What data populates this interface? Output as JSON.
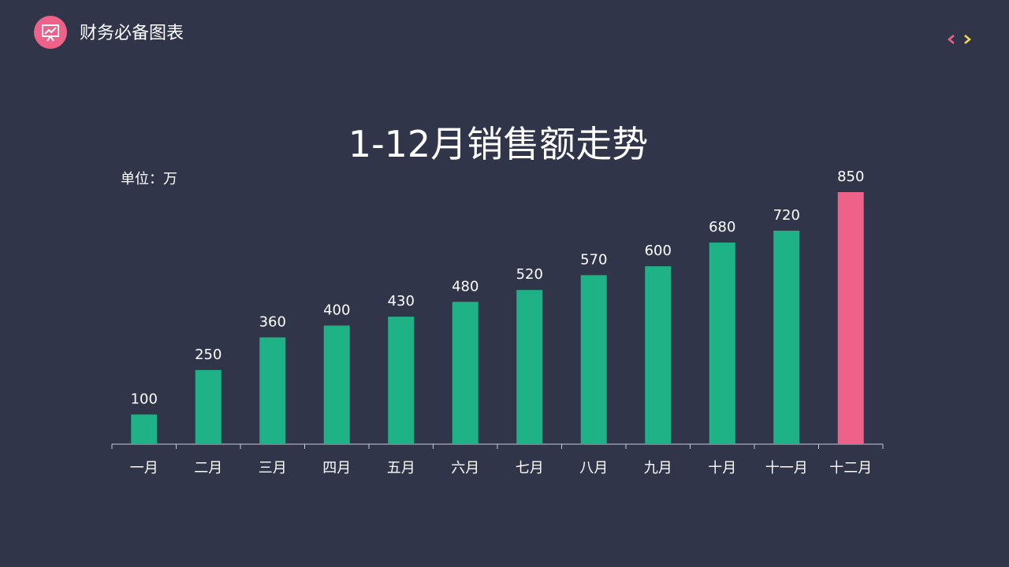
{
  "header": {
    "title": "财务必备图表",
    "logo_icon": "presentation-chart-icon",
    "accent_color": "#ee6189"
  },
  "nav": {
    "prev_icon": "chevron-left-icon",
    "next_icon": "chevron-right-icon",
    "prev_color": "#ee6189",
    "next_color": "#f5d94a"
  },
  "chart_data": {
    "type": "bar",
    "title": "1-12月销售额走势",
    "unit_label": "单位：万",
    "categories": [
      "一月",
      "二月",
      "三月",
      "四月",
      "五月",
      "六月",
      "七月",
      "八月",
      "九月",
      "十月",
      "十一月",
      "十二月"
    ],
    "values": [
      100,
      250,
      360,
      400,
      430,
      480,
      520,
      570,
      600,
      680,
      720,
      850
    ],
    "ylim": [
      0,
      850
    ],
    "grid": false,
    "legend": "none",
    "colors": {
      "bar": "#20b287",
      "highlight": "#ee6189",
      "axis": "#c9ccd6"
    },
    "highlight_category": "十二月"
  }
}
